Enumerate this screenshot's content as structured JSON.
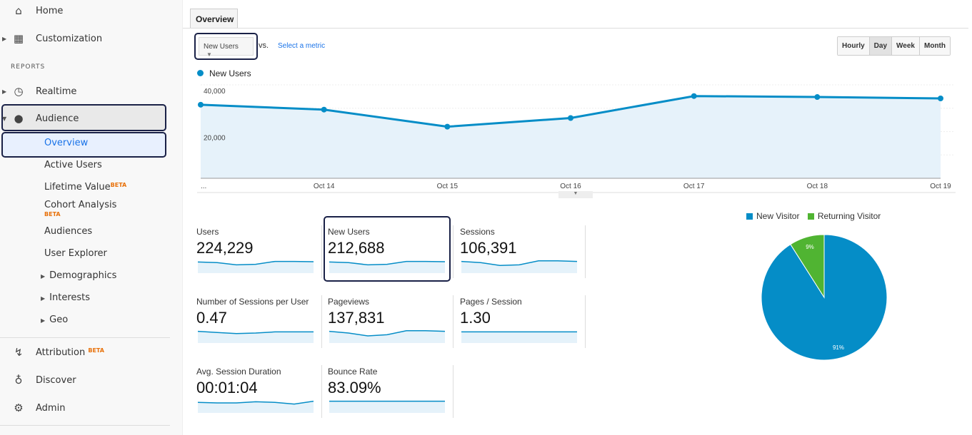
{
  "sidebar": {
    "home": "Home",
    "customization": "Customization",
    "reports_heading": "REPORTS",
    "realtime": "Realtime",
    "audience": "Audience",
    "audience_items": [
      "Overview",
      "Active Users",
      "Lifetime Value",
      "Cohort Analysis",
      "Audiences",
      "User Explorer",
      "Demographics",
      "Interests",
      "Geo"
    ],
    "beta": "BETA",
    "attribution": "Attribution",
    "discover": "Discover",
    "admin": "Admin"
  },
  "main": {
    "tab": "Overview",
    "metric_select": "New Users",
    "vs": "vs.",
    "select_metric": "Select a metric",
    "granularity": [
      "Hourly",
      "Day",
      "Week",
      "Month"
    ],
    "granularity_selected": "Day",
    "scorecards": [
      {
        "title": "Users",
        "value": "224,229"
      },
      {
        "title": "New Users",
        "value": "212,688"
      },
      {
        "title": "Sessions",
        "value": "106,391"
      },
      {
        "title": "Number of Sessions per User",
        "value": "0.47"
      },
      {
        "title": "Pageviews",
        "value": "137,831"
      },
      {
        "title": "Pages / Session",
        "value": "1.30"
      },
      {
        "title": "Avg. Session Duration",
        "value": "00:01:04"
      },
      {
        "title": "Bounce Rate",
        "value": "83.09%"
      }
    ]
  },
  "colors": {
    "primary": "#058dc7",
    "secondary": "#50b432",
    "highlight": "#1a2147"
  },
  "chart_data": [
    {
      "type": "area",
      "series": [
        {
          "name": "New Users",
          "values": [
            31500,
            29400,
            22100,
            25800,
            35200,
            34800,
            34200
          ]
        }
      ],
      "x": [
        "...",
        "Oct 14",
        "Oct 15",
        "Oct 16",
        "Oct 17",
        "Oct 18",
        "Oct 19"
      ],
      "yticks": [
        "40,000",
        "20,000"
      ],
      "ylim": [
        0,
        40000
      ],
      "grid": true,
      "legend": "top-left"
    },
    {
      "type": "pie",
      "labels": [
        "New Visitor",
        "Returning Visitor"
      ],
      "values": [
        91,
        9
      ],
      "data_labels": [
        "91%",
        "9%"
      ],
      "legend": "top"
    }
  ]
}
